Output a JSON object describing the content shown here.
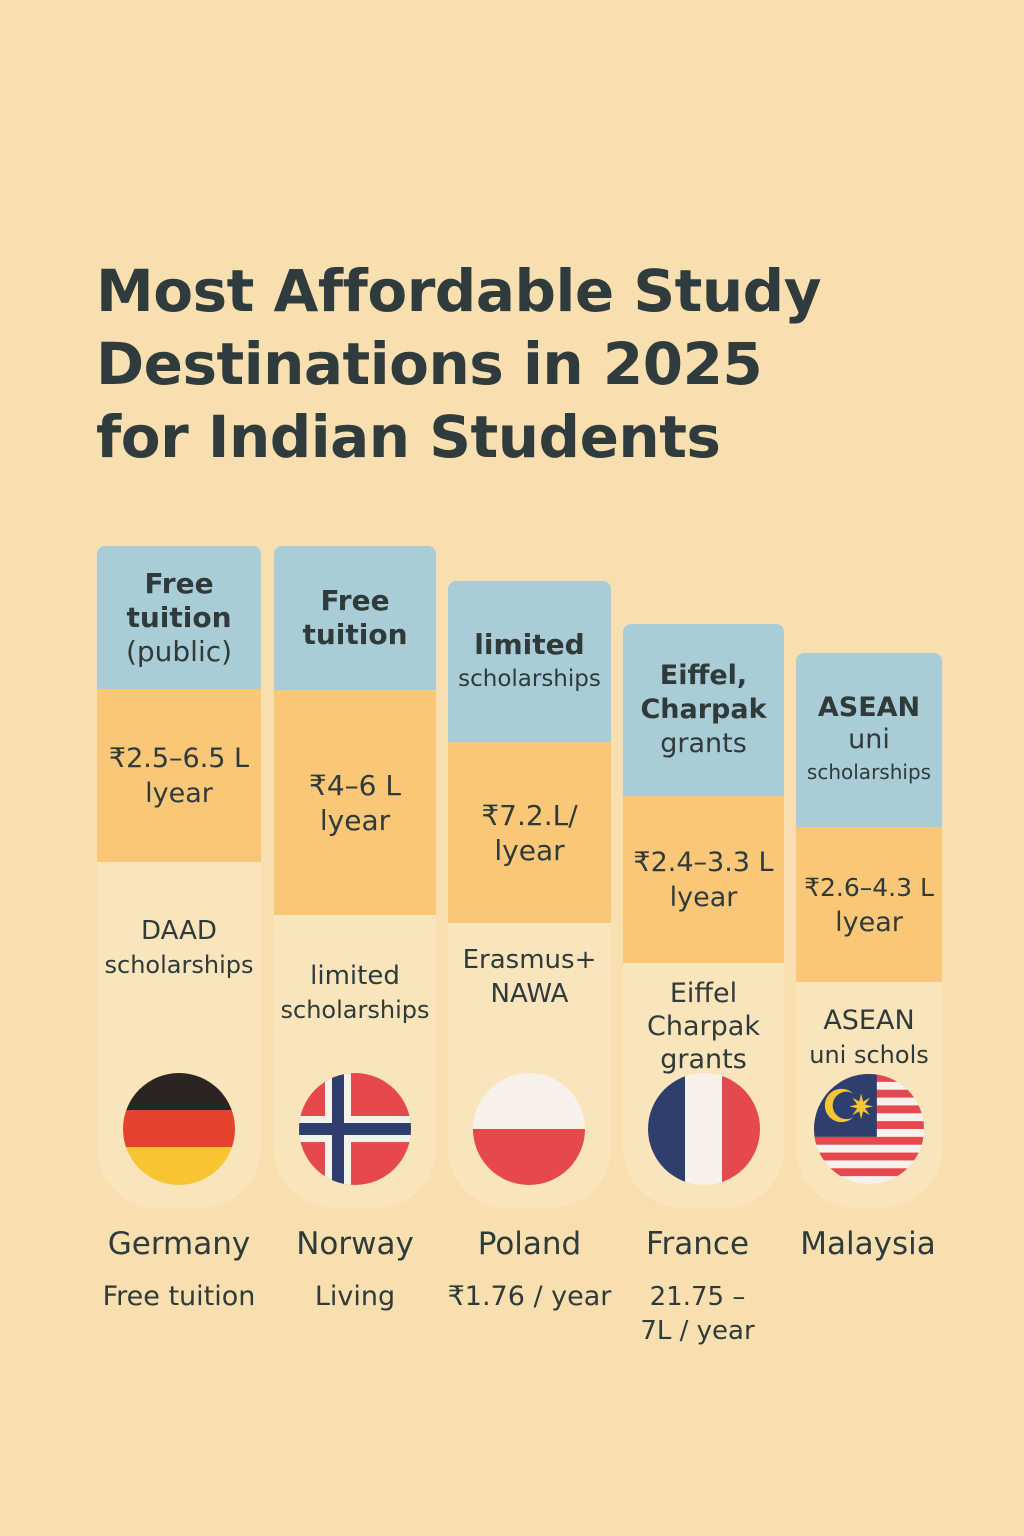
{
  "title": {
    "line1": "Most Affordable Study",
    "line2": "Destinations in 2025",
    "line3": "for Indian Students"
  },
  "countries": [
    {
      "name": "Germany",
      "tuition": [
        "Free",
        "tuition",
        "(public)"
      ],
      "cost": [
        "₹2.5–6.5 L",
        "lyear"
      ],
      "scholarship": [
        "DAAD",
        "scholarships"
      ],
      "note": [
        "Free tuition"
      ],
      "flag": "germany-flag"
    },
    {
      "name": "Norway",
      "tuition": [
        "Free",
        "tuition"
      ],
      "cost": [
        "₹4–6 L",
        "lyear"
      ],
      "scholarship": [
        "limited",
        "scholarships"
      ],
      "note": [
        "Living"
      ],
      "flag": "norway-flag"
    },
    {
      "name": "Poland",
      "tuition": [
        "limited",
        "scholarships"
      ],
      "cost": [
        "₹7.2.L/",
        "lyear"
      ],
      "scholarship": [
        "Erasmus+",
        "NAWA"
      ],
      "note": [
        "₹1.76 / year"
      ],
      "flag": "poland-flag"
    },
    {
      "name": "France",
      "tuition": [
        "Eiffel,",
        "Charpak",
        "grants"
      ],
      "cost": [
        "₹2.4–3.3 L",
        "lyear"
      ],
      "scholarship": [
        "Eiffel",
        "Charpak",
        "grants"
      ],
      "note": [
        "21.75 –",
        "7L / year"
      ],
      "flag": "france-flag"
    },
    {
      "name": "Malaysia",
      "tuition": [
        "ASEAN",
        "uni",
        "scholarships"
      ],
      "cost": [
        "₹2.6–4.3 L",
        "lyear"
      ],
      "scholarship": [
        "ASEAN",
        "uni schols"
      ],
      "note": [],
      "flag": "malaysia-flag"
    }
  ],
  "colors": {
    "background": "#f8dfb0",
    "tuition_band": "#a9ccd6",
    "cost_band": "#f9c777",
    "card_base": "#f9e4bb",
    "text": "#2f3a3a"
  }
}
